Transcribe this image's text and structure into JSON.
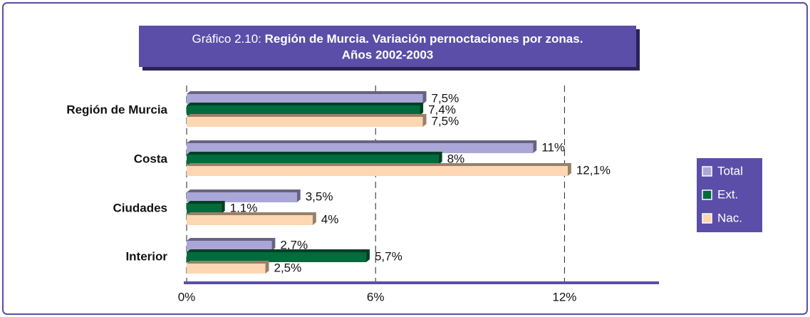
{
  "chart_data": {
    "type": "hbar",
    "title": {
      "prefix": "Gráfico 2.10:",
      "lines": [
        "Región de Murcia. Variación pernoctaciones por zonas.",
        "Años 2002-2003"
      ]
    },
    "categories": [
      "Región de Murcia",
      "Costa",
      "Ciudades",
      "Interior"
    ],
    "series": [
      {
        "name": "Total",
        "color": "#aaa7d8",
        "values": [
          7.5,
          11,
          3.5,
          2.7
        ],
        "value_labels": [
          "7,5%",
          "11%",
          "3,5%",
          "2,7%"
        ]
      },
      {
        "name": "Ext.",
        "color": "#006b3c",
        "values": [
          7.4,
          8,
          1.1,
          5.7
        ],
        "value_labels": [
          "7,4%",
          "8%",
          "1,1%",
          "5,7%"
        ]
      },
      {
        "name": "Nac.",
        "color": "#fdd6b2",
        "values": [
          7.5,
          12.1,
          4,
          2.5
        ],
        "value_labels": [
          "7,5%",
          "12,1%",
          "4%",
          "2,5%"
        ]
      }
    ],
    "xlim": [
      0,
      15
    ],
    "xticks": [
      {
        "value": 0,
        "label": "0%"
      },
      {
        "value": 6,
        "label": "6%"
      },
      {
        "value": 12,
        "label": "12%"
      }
    ],
    "grid": true,
    "legend": "right"
  }
}
